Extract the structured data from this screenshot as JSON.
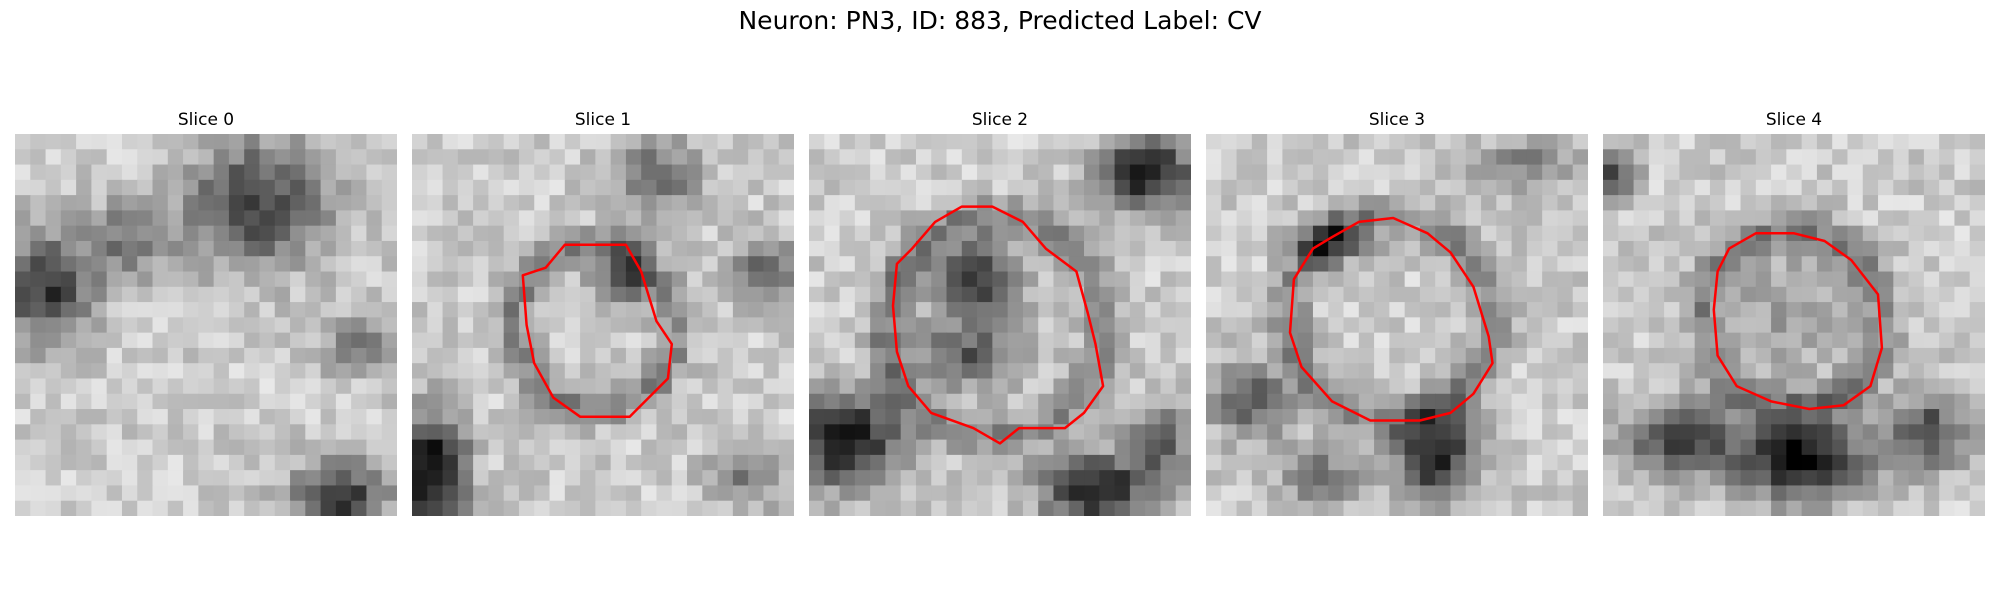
{
  "figure": {
    "title": "Neuron: PN3, ID: 883, Predicted Label: CV"
  },
  "contour_color": "#ff0000",
  "colormap": "gray",
  "panels": [
    {
      "title": "Slice 0",
      "contour": [],
      "blobs": [
        [
          0.63,
          0.18,
          0.18,
          0.16,
          0.55
        ],
        [
          0.08,
          0.4,
          0.12,
          0.14,
          0.6
        ],
        [
          0.3,
          0.28,
          0.1,
          0.1,
          0.35
        ],
        [
          0.85,
          0.95,
          0.12,
          0.1,
          0.6
        ],
        [
          0.9,
          0.55,
          0.1,
          0.08,
          0.3
        ]
      ]
    },
    {
      "title": "Slice 1",
      "contour": [
        [
          0.35,
          0.35
        ],
        [
          0.4,
          0.29
        ],
        [
          0.56,
          0.29
        ],
        [
          0.6,
          0.36
        ],
        [
          0.64,
          0.49
        ],
        [
          0.68,
          0.55
        ],
        [
          0.67,
          0.64
        ],
        [
          0.57,
          0.74
        ],
        [
          0.44,
          0.74
        ],
        [
          0.37,
          0.69
        ],
        [
          0.32,
          0.6
        ],
        [
          0.3,
          0.5
        ],
        [
          0.29,
          0.37
        ]
      ],
      "blobs": [
        [
          0.55,
          0.38,
          0.07,
          0.08,
          0.45
        ],
        [
          0.05,
          0.88,
          0.09,
          0.15,
          0.8
        ],
        [
          0.93,
          0.36,
          0.08,
          0.08,
          0.5
        ],
        [
          0.65,
          0.1,
          0.12,
          0.1,
          0.35
        ],
        [
          0.88,
          0.9,
          0.1,
          0.08,
          0.3
        ]
      ]
    },
    {
      "title": "Slice 2",
      "contour": [
        [
          0.27,
          0.3
        ],
        [
          0.33,
          0.23
        ],
        [
          0.4,
          0.19
        ],
        [
          0.48,
          0.19
        ],
        [
          0.56,
          0.23
        ],
        [
          0.62,
          0.3
        ],
        [
          0.7,
          0.36
        ],
        [
          0.73,
          0.47
        ],
        [
          0.75,
          0.55
        ],
        [
          0.77,
          0.66
        ],
        [
          0.72,
          0.73
        ],
        [
          0.67,
          0.77
        ],
        [
          0.55,
          0.77
        ],
        [
          0.5,
          0.81
        ],
        [
          0.43,
          0.77
        ],
        [
          0.32,
          0.73
        ],
        [
          0.26,
          0.66
        ],
        [
          0.23,
          0.57
        ],
        [
          0.22,
          0.45
        ],
        [
          0.23,
          0.34
        ]
      ],
      "blobs": [
        [
          0.43,
          0.38,
          0.12,
          0.1,
          0.55
        ],
        [
          0.42,
          0.58,
          0.14,
          0.08,
          0.45
        ],
        [
          0.88,
          0.1,
          0.12,
          0.09,
          0.75
        ],
        [
          0.1,
          0.8,
          0.14,
          0.12,
          0.75
        ],
        [
          0.75,
          0.93,
          0.14,
          0.09,
          0.7
        ],
        [
          0.92,
          0.8,
          0.08,
          0.1,
          0.45
        ]
      ]
    },
    {
      "title": "Slice 3",
      "contour": [
        [
          0.28,
          0.3
        ],
        [
          0.33,
          0.27
        ],
        [
          0.4,
          0.23
        ],
        [
          0.49,
          0.22
        ],
        [
          0.58,
          0.26
        ],
        [
          0.64,
          0.31
        ],
        [
          0.7,
          0.4
        ],
        [
          0.74,
          0.53
        ],
        [
          0.75,
          0.6
        ],
        [
          0.7,
          0.68
        ],
        [
          0.64,
          0.73
        ],
        [
          0.56,
          0.75
        ],
        [
          0.43,
          0.75
        ],
        [
          0.33,
          0.7
        ],
        [
          0.25,
          0.61
        ],
        [
          0.22,
          0.52
        ],
        [
          0.23,
          0.38
        ]
      ],
      "blobs": [
        [
          0.32,
          0.28,
          0.1,
          0.06,
          0.45
        ],
        [
          0.6,
          0.84,
          0.1,
          0.12,
          0.7
        ],
        [
          0.12,
          0.7,
          0.1,
          0.1,
          0.45
        ],
        [
          0.85,
          0.08,
          0.14,
          0.07,
          0.3
        ],
        [
          0.3,
          0.9,
          0.1,
          0.08,
          0.35
        ]
      ]
    },
    {
      "title": "Slice 4",
      "contour": [
        [
          0.33,
          0.3
        ],
        [
          0.4,
          0.26
        ],
        [
          0.5,
          0.26
        ],
        [
          0.58,
          0.28
        ],
        [
          0.65,
          0.33
        ],
        [
          0.72,
          0.42
        ],
        [
          0.73,
          0.56
        ],
        [
          0.7,
          0.66
        ],
        [
          0.63,
          0.71
        ],
        [
          0.54,
          0.72
        ],
        [
          0.44,
          0.7
        ],
        [
          0.35,
          0.66
        ],
        [
          0.3,
          0.58
        ],
        [
          0.29,
          0.46
        ],
        [
          0.3,
          0.36
        ]
      ],
      "blobs": [
        [
          0.52,
          0.85,
          0.16,
          0.1,
          0.8
        ],
        [
          0.2,
          0.8,
          0.14,
          0.1,
          0.55
        ],
        [
          0.85,
          0.78,
          0.1,
          0.1,
          0.5
        ],
        [
          0.03,
          0.1,
          0.05,
          0.06,
          0.6
        ],
        [
          0.5,
          0.46,
          0.16,
          0.16,
          0.2
        ]
      ]
    }
  ]
}
